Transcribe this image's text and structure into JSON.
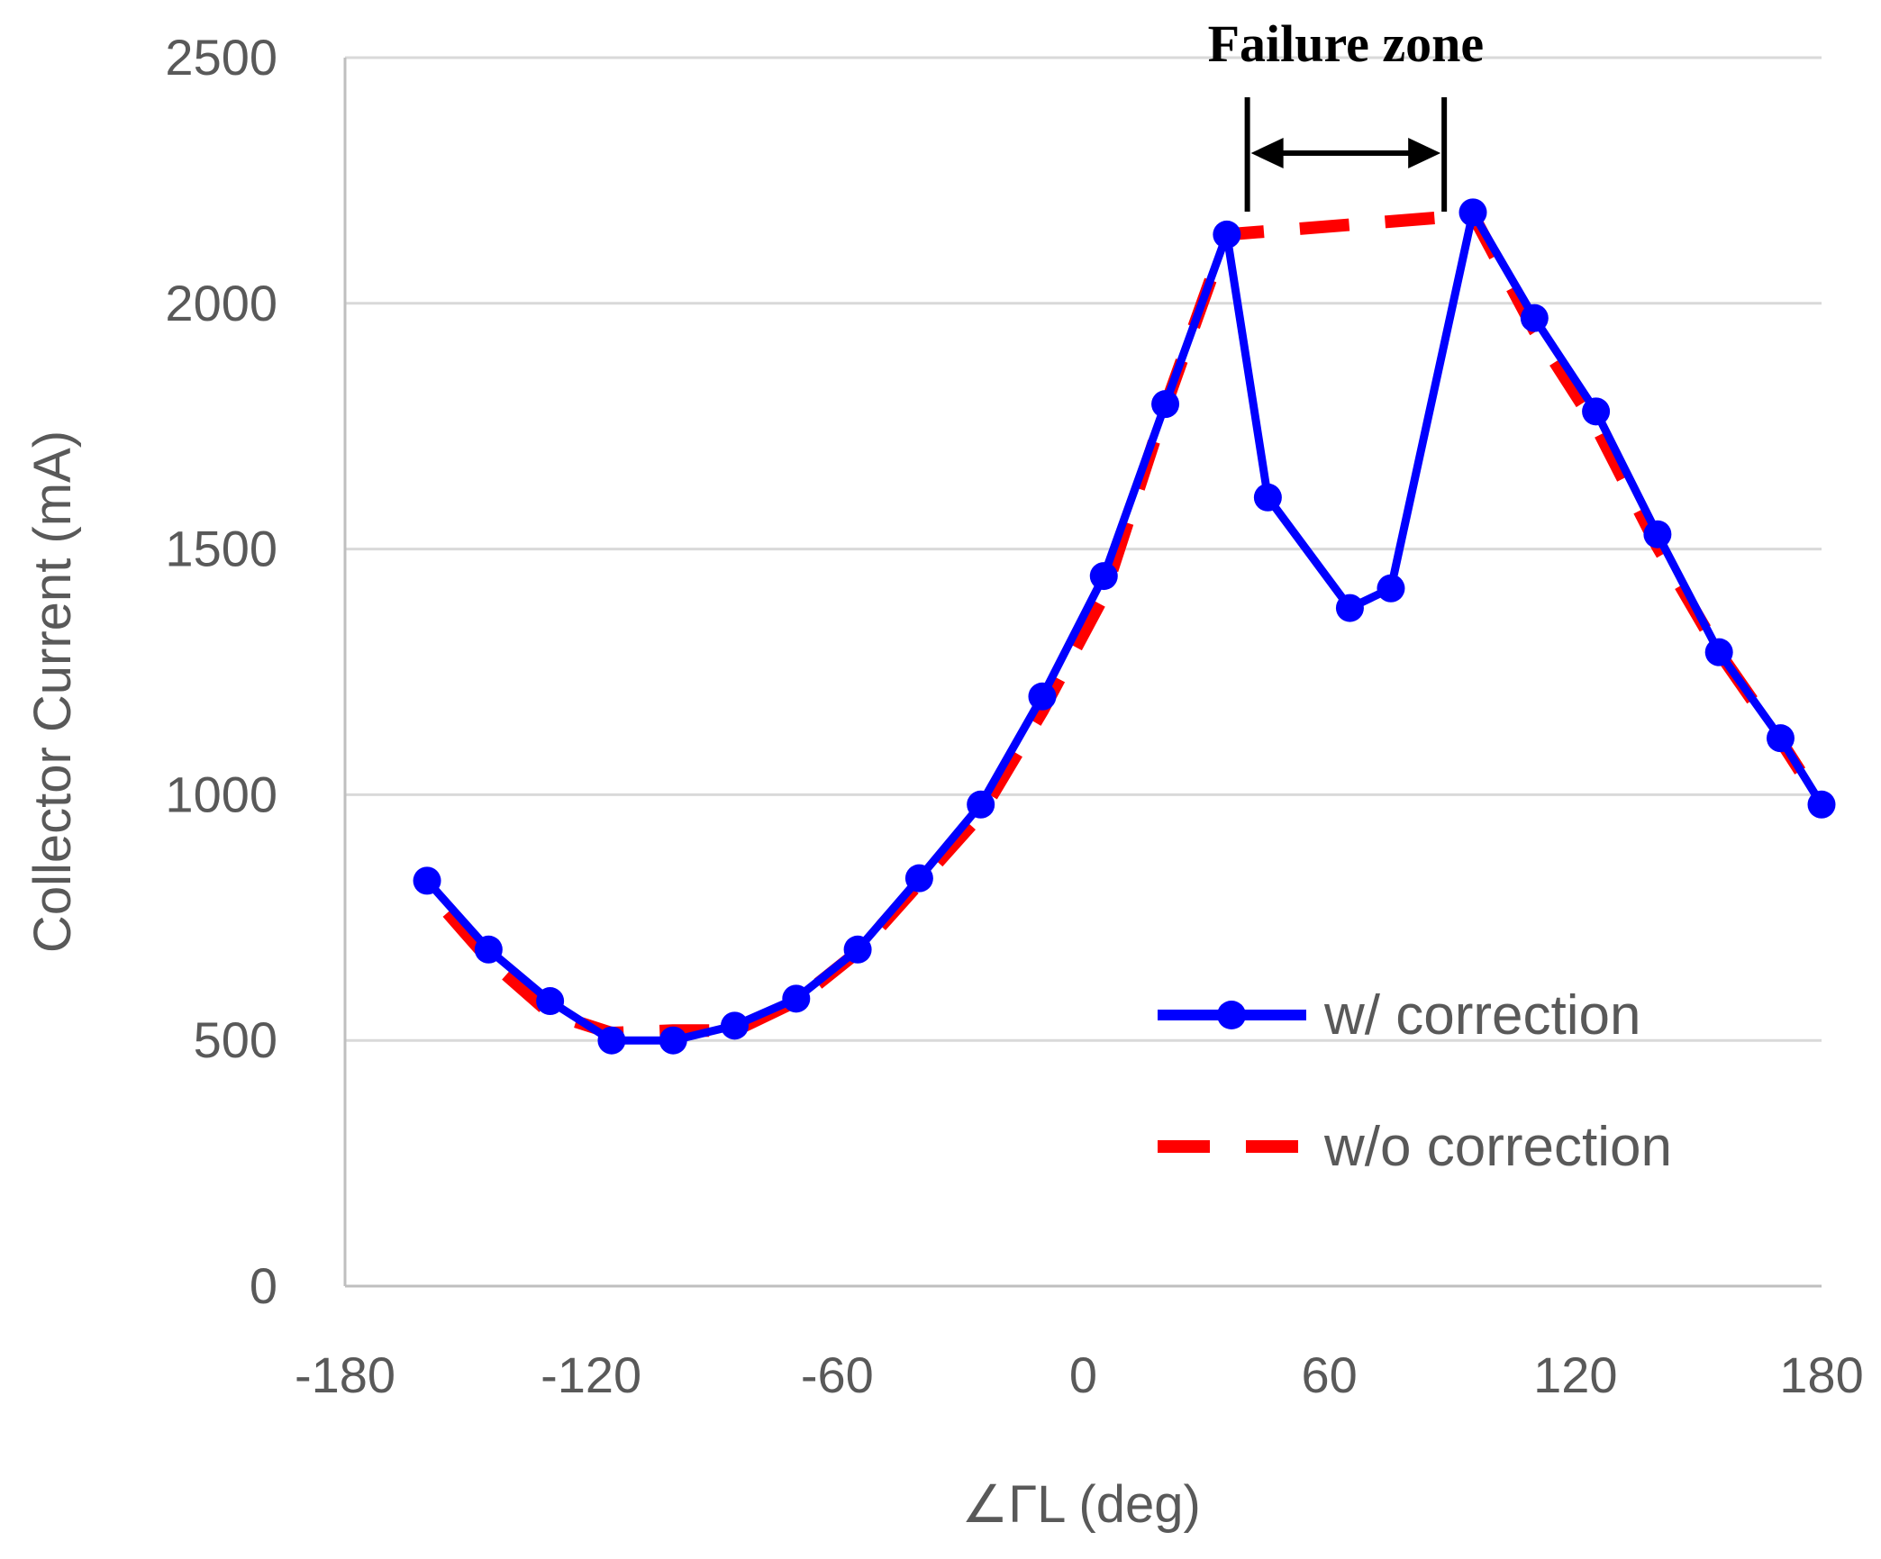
{
  "chart_data": {
    "type": "line",
    "title": "",
    "xlabel": "∠ΓL (deg)",
    "ylabel": "Collector Current (mA)",
    "xlim": [
      -180,
      180
    ],
    "ylim": [
      0,
      2500
    ],
    "x_ticks": [
      -180,
      -120,
      -60,
      0,
      60,
      120,
      180
    ],
    "y_ticks": [
      0,
      500,
      1000,
      1500,
      2000,
      2500
    ],
    "grid": "horizontal",
    "legend": "bottom-right",
    "series": [
      {
        "name": "w/ correction",
        "style": "solid-markers",
        "color": "#0000ff",
        "x": [
          -160,
          -145,
          -130,
          -115,
          -100,
          -85,
          -70,
          -55,
          -40,
          -25,
          -10,
          5,
          20,
          35,
          45,
          65,
          75,
          95,
          110,
          125,
          140,
          155,
          170,
          180
        ],
        "values": [
          825,
          685,
          580,
          500,
          500,
          530,
          585,
          685,
          830,
          980,
          1200,
          1445,
          1795,
          2140,
          1605,
          1380,
          1420,
          2185,
          1970,
          1780,
          1530,
          1290,
          1115,
          980
        ]
      },
      {
        "name": "w/o correction",
        "style": "dashed",
        "color": "#ff0000",
        "x": [
          -155,
          -145,
          -130,
          -115,
          -100,
          -85,
          -70,
          -55,
          -40,
          -25,
          -10,
          5,
          20,
          35,
          95,
          110,
          125,
          140,
          155,
          170,
          180
        ],
        "values": [
          760,
          665,
          555,
          515,
          520,
          520,
          580,
          680,
          820,
          960,
          1170,
          1405,
          1790,
          2140,
          2180,
          1945,
          1750,
          1505,
          1290,
          1110,
          980
        ]
      }
    ],
    "annotations": [
      {
        "text": "Failure zone",
        "x_start": 40,
        "x_end": 88,
        "y": 2300
      }
    ]
  }
}
